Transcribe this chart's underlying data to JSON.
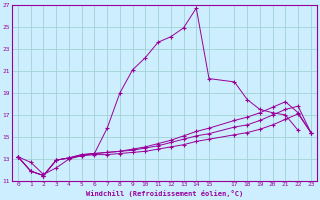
{
  "background_color": "#cceeff",
  "line_color": "#990099",
  "grid_color": "#99cccc",
  "xlabel": "Windchill (Refroidissement éolien,°C)",
  "xlim": [
    -0.5,
    23.5
  ],
  "ylim": [
    11,
    27
  ],
  "xticks": [
    0,
    1,
    2,
    3,
    4,
    5,
    6,
    7,
    8,
    9,
    10,
    11,
    12,
    13,
    14,
    15,
    17,
    18,
    19,
    20,
    21,
    22,
    23
  ],
  "yticks": [
    11,
    13,
    15,
    17,
    19,
    21,
    23,
    25,
    27
  ],
  "series": [
    {
      "x": [
        0,
        1,
        2,
        3,
        4,
        5,
        6,
        7,
        8,
        9,
        10,
        11,
        12,
        13,
        14,
        15,
        17,
        18,
        19,
        20,
        21,
        22,
        23
      ],
      "y": [
        13.2,
        12.7,
        11.6,
        12.2,
        13.0,
        13.3,
        13.5,
        15.8,
        19.0,
        21.1,
        22.2,
        23.6,
        24.1,
        24.9,
        26.7,
        20.3,
        20.0,
        18.4,
        17.5,
        17.2,
        17.0,
        15.6,
        null
      ]
    },
    {
      "x": [
        0,
        1,
        2,
        3,
        4,
        5,
        6,
        7,
        8,
        9,
        10,
        11,
        12,
        13,
        14,
        15,
        17,
        18,
        19,
        20,
        21,
        22,
        23
      ],
      "y": [
        13.2,
        11.9,
        11.5,
        12.9,
        13.1,
        13.4,
        13.5,
        13.6,
        13.7,
        13.9,
        14.1,
        14.4,
        14.7,
        15.1,
        15.5,
        15.8,
        16.5,
        16.8,
        17.2,
        17.7,
        18.2,
        17.2,
        15.4
      ]
    },
    {
      "x": [
        0,
        1,
        2,
        3,
        4,
        5,
        6,
        7,
        8,
        9,
        10,
        11,
        12,
        13,
        14,
        15,
        17,
        18,
        19,
        20,
        21,
        22,
        23
      ],
      "y": [
        13.2,
        11.9,
        11.5,
        12.9,
        13.1,
        13.4,
        13.5,
        13.6,
        13.7,
        13.8,
        14.0,
        14.2,
        14.5,
        14.8,
        15.1,
        15.3,
        15.9,
        16.1,
        16.5,
        17.0,
        17.5,
        17.8,
        15.4
      ]
    },
    {
      "x": [
        0,
        1,
        2,
        3,
        4,
        5,
        6,
        7,
        8,
        9,
        10,
        11,
        12,
        13,
        14,
        15,
        17,
        18,
        19,
        20,
        21,
        22,
        23
      ],
      "y": [
        13.2,
        11.9,
        11.5,
        12.9,
        13.1,
        13.3,
        13.4,
        13.4,
        13.5,
        13.6,
        13.7,
        13.9,
        14.1,
        14.3,
        14.6,
        14.8,
        15.2,
        15.4,
        15.7,
        16.1,
        16.6,
        17.1,
        15.4
      ]
    }
  ]
}
